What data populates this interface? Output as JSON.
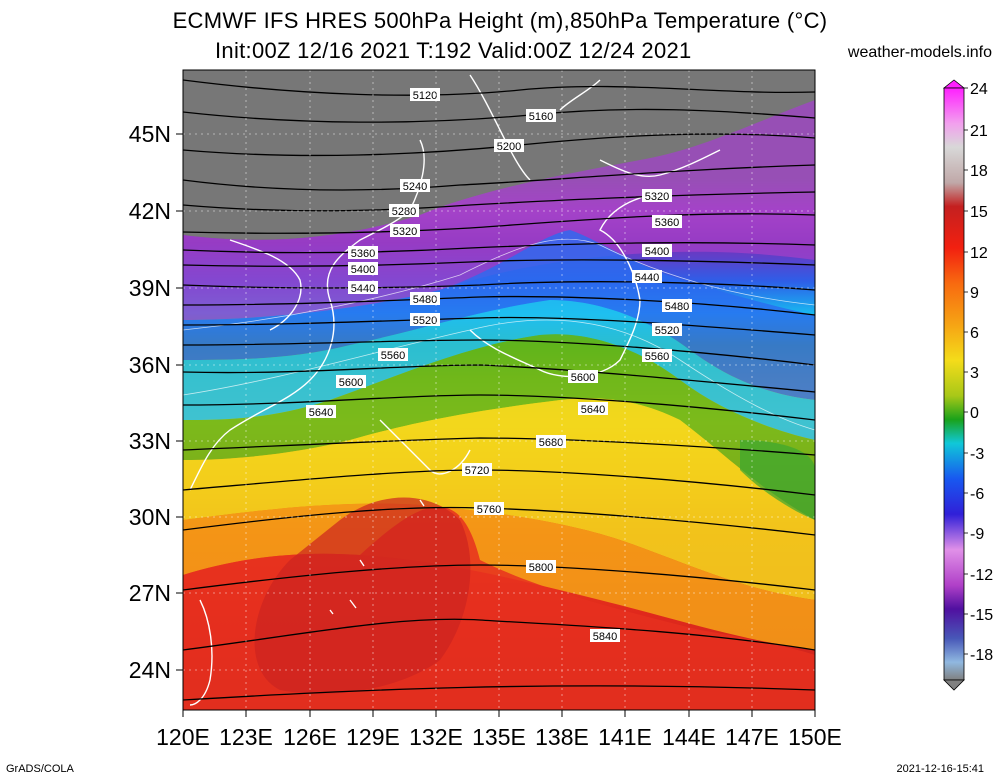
{
  "header": {
    "title_line1": "ECMWF IFS HRES 500hPa Height (m),850hPa Temperature (°C)",
    "title_line2": "Init:00Z 12/16 2021 T:192 Valid:00Z 12/24 2021",
    "site": "weather-models.info"
  },
  "axes": {
    "lat_labels": [
      "45N",
      "42N",
      "39N",
      "36N",
      "33N",
      "30N",
      "27N",
      "24N"
    ],
    "lon_labels": [
      "120E",
      "123E",
      "126E",
      "129E",
      "132E",
      "135E",
      "138E",
      "141E",
      "144E",
      "147E",
      "150E"
    ]
  },
  "colorbar": {
    "ticks": [
      "24",
      "21",
      "18",
      "15",
      "12",
      "9",
      "6",
      "3",
      "0",
      "-3",
      "-6",
      "-9",
      "-12",
      "-15",
      "-18"
    ]
  },
  "contours": {
    "labels": [
      "5120",
      "5160",
      "5200",
      "5240",
      "5280",
      "5320",
      "5360",
      "5400",
      "5440",
      "5480",
      "5520",
      "5560",
      "5600",
      "5640",
      "5680",
      "5720",
      "5760",
      "5800",
      "5840"
    ]
  },
  "footer": {
    "left": "GrADS/COLA",
    "right": "2021-12-16-15:41"
  }
}
